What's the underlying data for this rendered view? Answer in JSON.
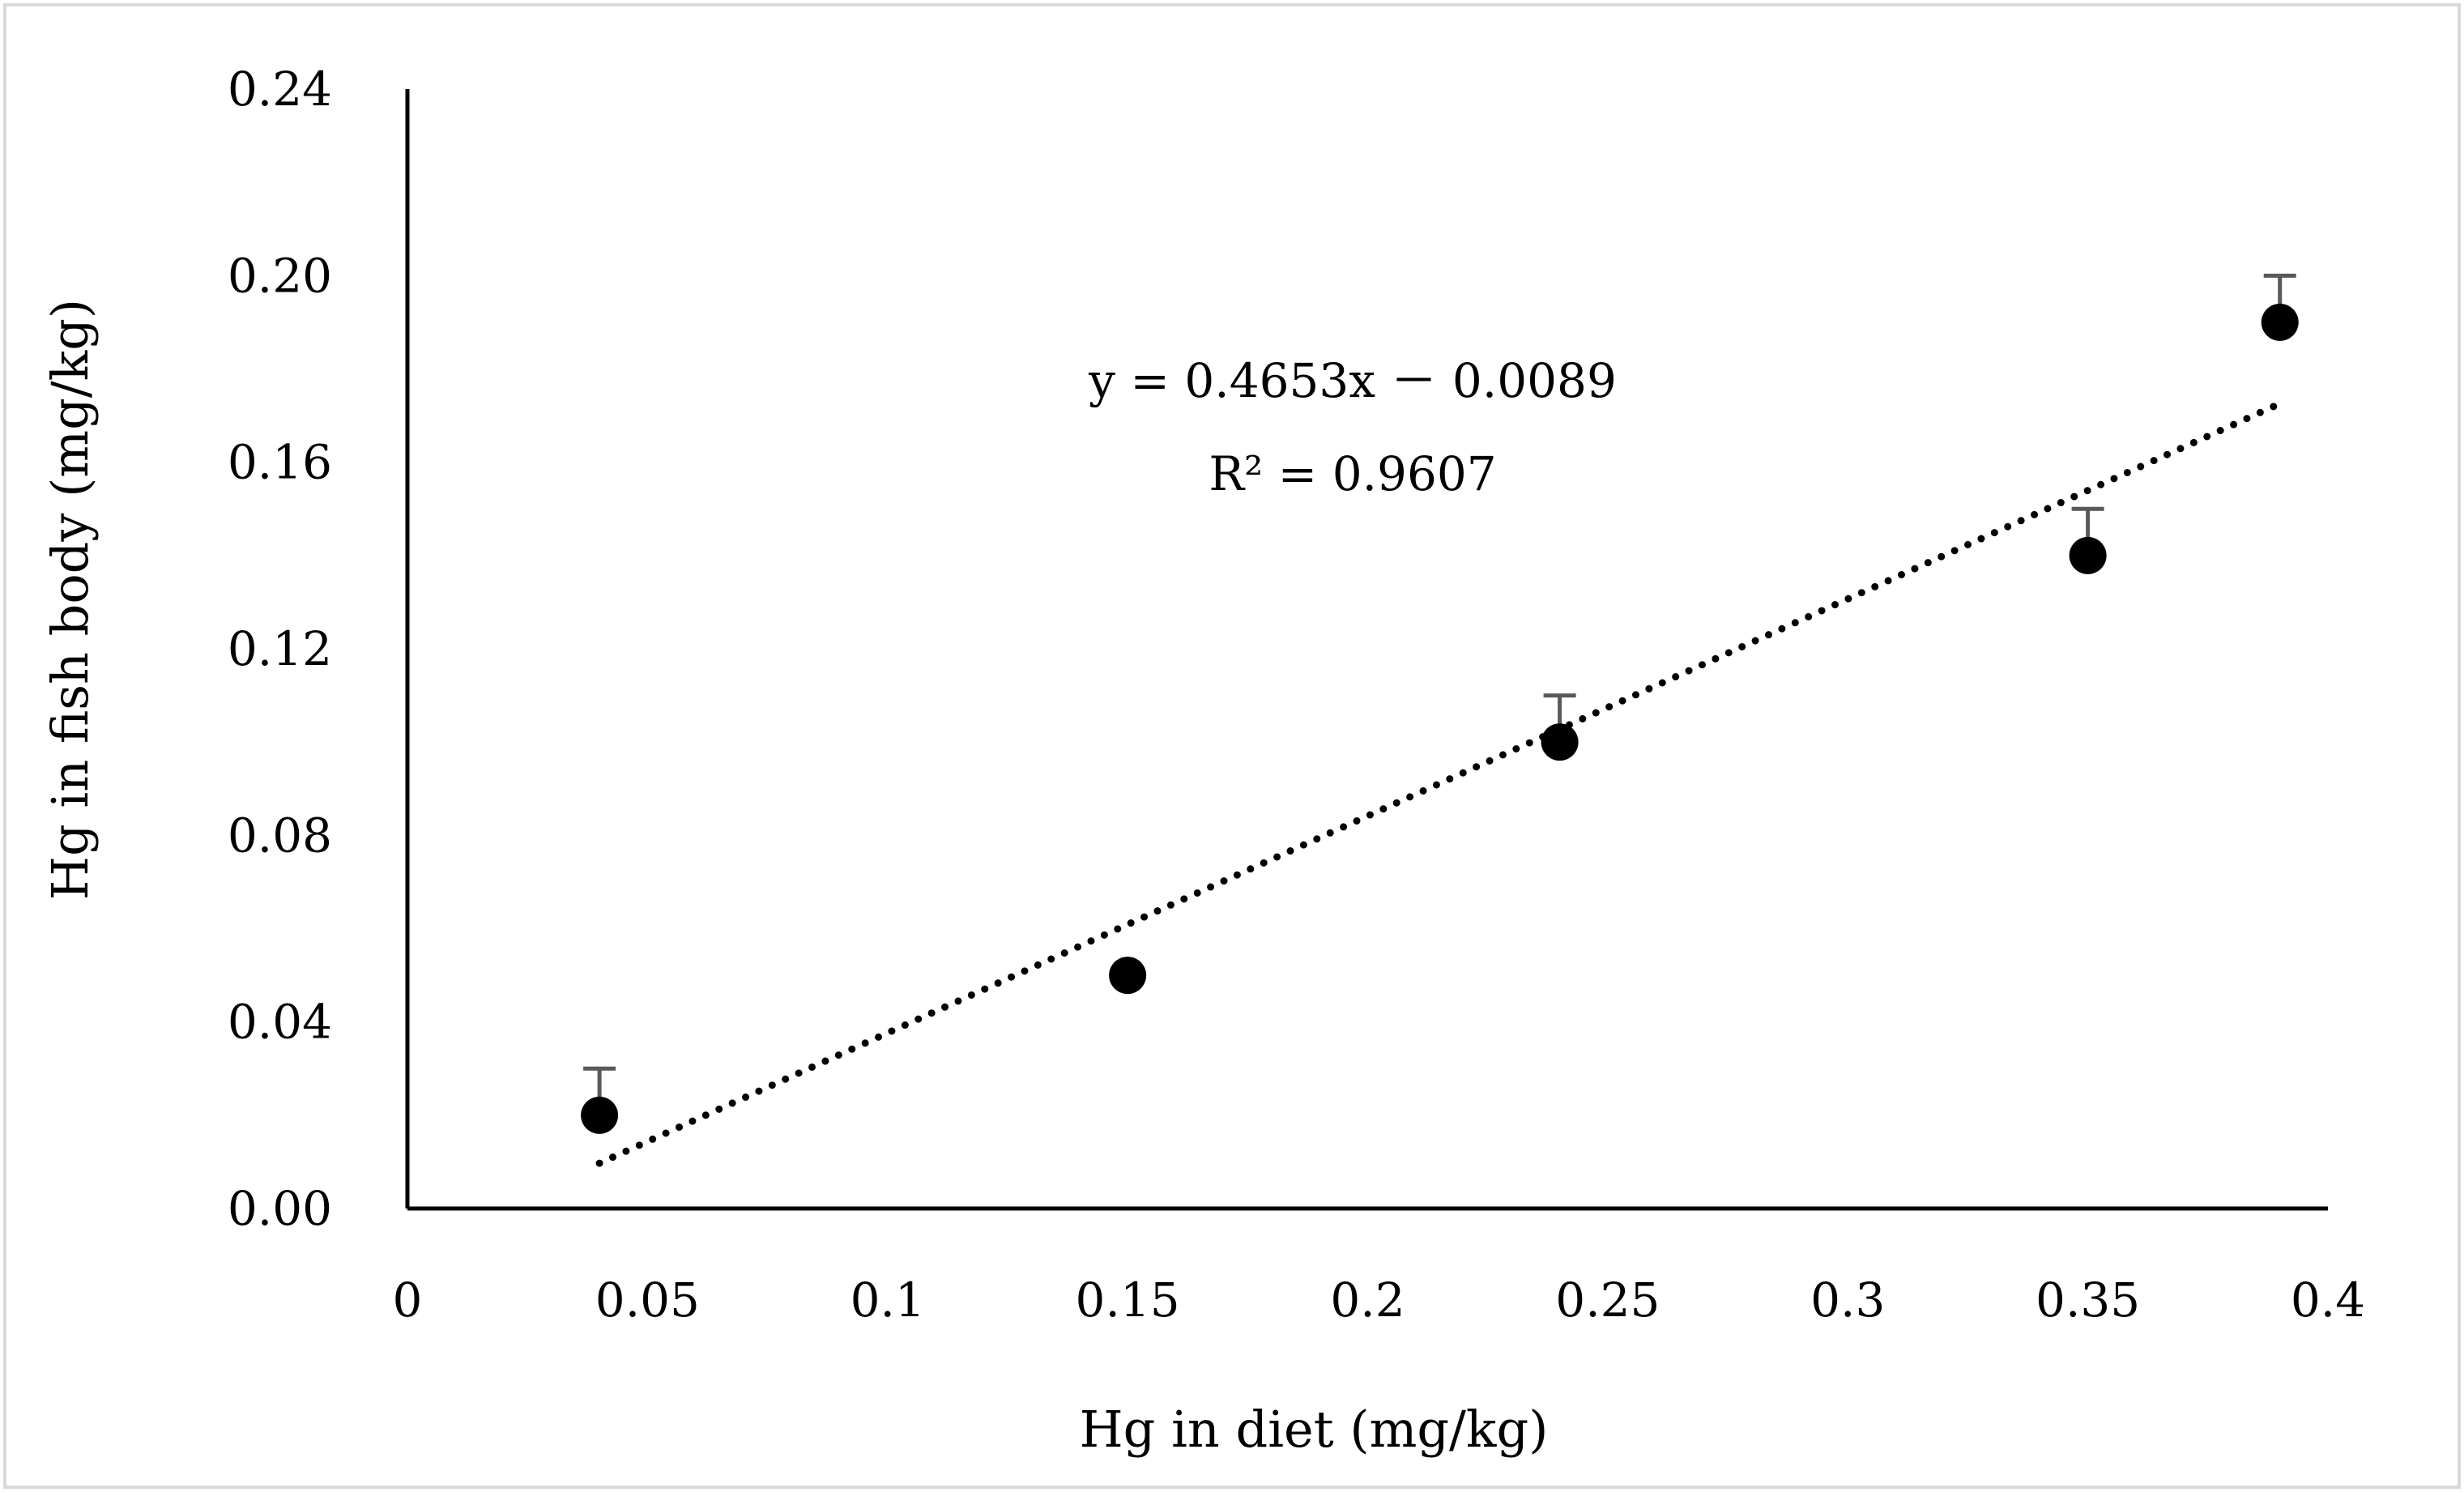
{
  "chart_data": {
    "type": "scatter",
    "title": "",
    "xlabel": "Hg in diet (mg/kg)",
    "ylabel": "Hg in fish body (mg/kg)",
    "xlim": [
      0,
      0.4
    ],
    "ylim": [
      0,
      0.24
    ],
    "x_ticks": [
      0,
      0.05,
      0.1,
      0.15,
      0.2,
      0.25,
      0.3,
      0.35,
      0.4
    ],
    "x_tick_labels": [
      "0",
      "0.05",
      "0.1",
      "0.15",
      "0.2",
      "0.25",
      "0.3",
      "0.35",
      "0.4"
    ],
    "y_ticks": [
      0,
      0.04,
      0.08,
      0.12,
      0.16,
      0.2,
      0.24
    ],
    "y_tick_labels": [
      "0.00",
      "0.04",
      "0.08",
      "0.12",
      "0.16",
      "0.20",
      "0.24"
    ],
    "grid": false,
    "series": [
      {
        "name": "Hg in fish body",
        "x": [
          0.04,
          0.15,
          0.24,
          0.35,
          0.39
        ],
        "y": [
          0.02,
          0.05,
          0.1,
          0.14,
          0.19
        ],
        "error_upper": [
          0.01,
          0,
          0.01,
          0.01,
          0.01
        ]
      }
    ],
    "trendline": {
      "type": "linear",
      "style": "dotted",
      "slope": 0.4653,
      "intercept": -0.0089,
      "x_range": [
        0.04,
        0.39
      ],
      "equation": "y = 0.4653x － 0.0089",
      "r_squared": "R² = 0.9607"
    },
    "colors": {
      "marker": "#000000",
      "error_bar": "#595959",
      "axis": "#000000",
      "frame": "#d9d9d9"
    }
  }
}
